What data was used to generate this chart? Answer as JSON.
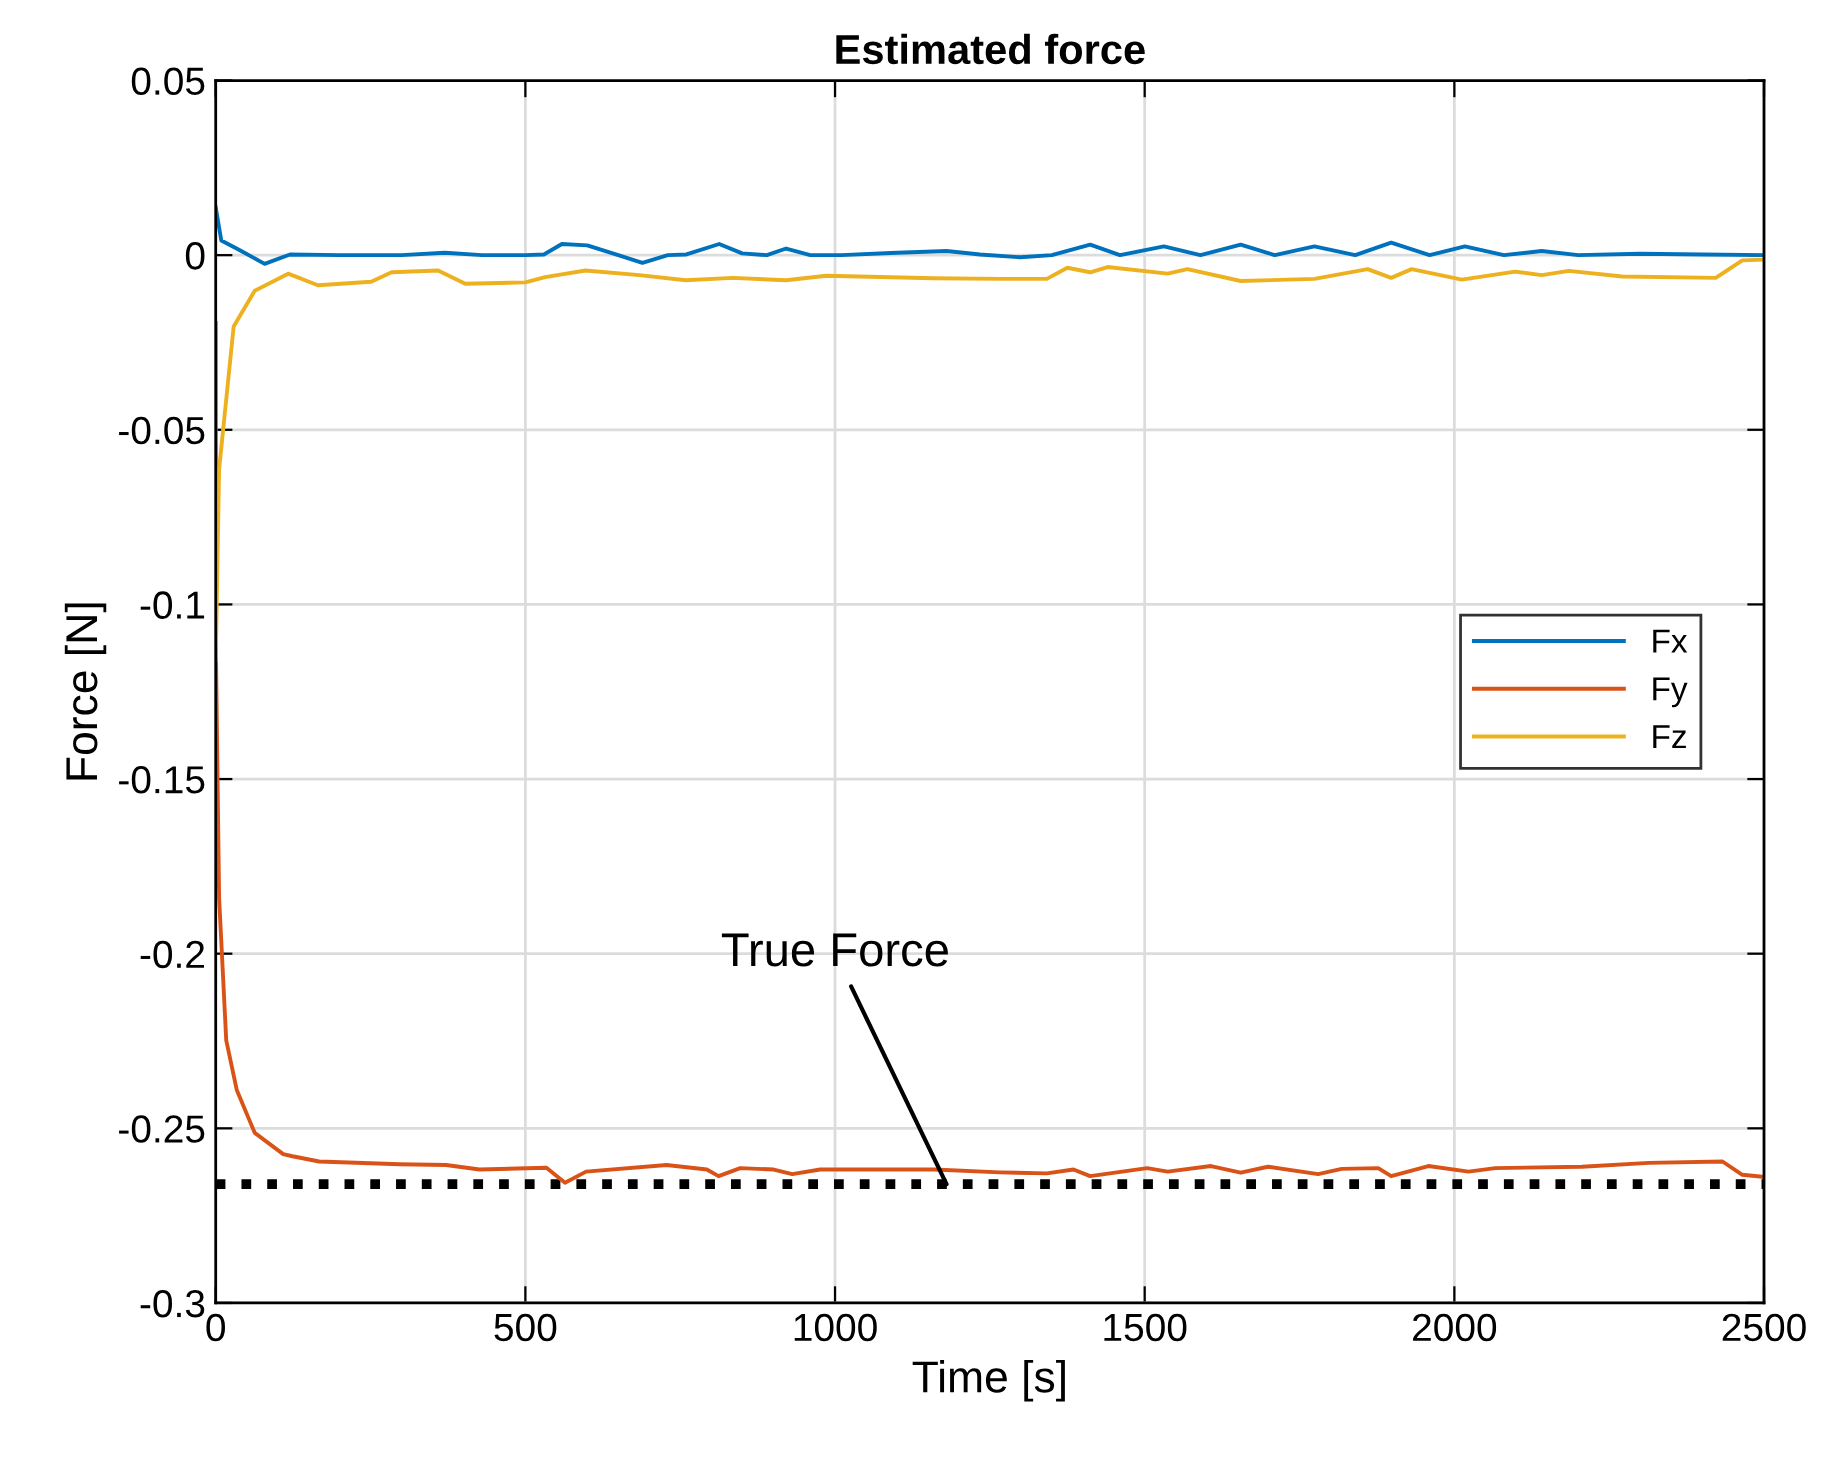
{
  "chart_data": {
    "type": "line",
    "title": "Estimated force",
    "xlabel": "Time [s]",
    "ylabel": "Force [N]",
    "xlim": [
      0,
      2500
    ],
    "xticks": [
      0,
      500,
      1000,
      1500,
      2000,
      2500
    ],
    "ylim": [
      -0.3,
      0.05
    ],
    "yticks": [
      -0.3,
      -0.25,
      -0.2,
      -0.15,
      -0.1,
      -0.05,
      0,
      0.05
    ],
    "grid": true,
    "legend": "right",
    "series": [
      {
        "name": "Fx",
        "color": "#0072bd",
        "x": [
          0,
          9,
          36,
          79,
          120,
          200,
          300,
          370,
          430,
          500,
          530,
          559,
          600,
          650,
          689,
          730,
          760,
          813,
          850,
          890,
          921,
          960,
          1010,
          1090,
          1180,
          1234,
          1299,
          1350,
          1412,
          1460,
          1531,
          1590,
          1655,
          1710,
          1774,
          1840,
          1898,
          1960,
          2017,
          2080,
          2141,
          2200,
          2300,
          2400,
          2500
        ],
        "values": [
          0.0137,
          0.0042,
          0.0017,
          -0.0025,
          0.0002,
          0,
          0,
          0.0007,
          0,
          0,
          0.0002,
          0.0032,
          0.0028,
          0,
          -0.0022,
          0,
          0.0002,
          0.0032,
          0.0005,
          0,
          0.0019,
          0,
          0,
          0.0006,
          0.0012,
          0.0002,
          -0.0006,
          0,
          0.003,
          0,
          0.0025,
          0,
          0.003,
          0,
          0.0025,
          0,
          0.0036,
          0,
          0.0025,
          0,
          0.0012,
          0,
          0.0004,
          0.0002,
          0
        ]
      },
      {
        "name": "Fy",
        "color": "#d95319",
        "x": [
          0,
          0.5,
          5.5,
          17,
          34,
          63,
          109,
          124,
          167,
          297,
          372,
          426,
          534,
          564,
          598,
          728,
          793,
          812,
          847,
          901,
          931,
          976,
          1160,
          1266,
          1342,
          1385,
          1412,
          1504,
          1537,
          1607,
          1655,
          1699,
          1780,
          1818,
          1877,
          1898,
          1958,
          2023,
          2066,
          2206,
          2314,
          2433,
          2465,
          2500
        ],
        "values": [
          -0.0194,
          -0.116,
          -0.184,
          -0.2248,
          -0.239,
          -0.2513,
          -0.2574,
          -0.258,
          -0.2595,
          -0.2603,
          -0.2605,
          -0.2618,
          -0.2613,
          -0.2656,
          -0.2624,
          -0.2605,
          -0.2618,
          -0.2637,
          -0.2614,
          -0.2618,
          -0.2631,
          -0.2618,
          -0.2618,
          -0.2626,
          -0.2629,
          -0.2618,
          -0.2637,
          -0.2614,
          -0.2624,
          -0.2608,
          -0.2627,
          -0.261,
          -0.2631,
          -0.2616,
          -0.2614,
          -0.2637,
          -0.2608,
          -0.2624,
          -0.2614,
          -0.261,
          -0.2599,
          -0.2595,
          -0.2633,
          -0.2639
        ]
      },
      {
        "name": "Fz",
        "color": "#edb120",
        "x": [
          0,
          5.5,
          29,
          63,
          117,
          165,
          251,
          284,
          359,
          403,
          500,
          532,
          597,
          684,
          759,
          835,
          921,
          986,
          1159,
          1266,
          1342,
          1375,
          1412,
          1440,
          1537,
          1569,
          1655,
          1774,
          1860,
          1898,
          1931,
          2012,
          2098,
          2141,
          2185,
          2271,
          2422,
          2465,
          2500
        ],
        "values": [
          -0.116,
          -0.0613,
          -0.0204,
          -0.0102,
          -0.0053,
          -0.0086,
          -0.0076,
          -0.0049,
          -0.0044,
          -0.0082,
          -0.0078,
          -0.0063,
          -0.0044,
          -0.0057,
          -0.0072,
          -0.0065,
          -0.0072,
          -0.0059,
          -0.0066,
          -0.0068,
          -0.0068,
          -0.0036,
          -0.0049,
          -0.0034,
          -0.0053,
          -0.004,
          -0.0074,
          -0.0068,
          -0.004,
          -0.0065,
          -0.004,
          -0.007,
          -0.0047,
          -0.0057,
          -0.0045,
          -0.0061,
          -0.0065,
          -0.0015,
          -0.0013
        ]
      }
    ],
    "ref_lines": [
      {
        "axis": "y",
        "value": -0.266,
        "color": "#000000",
        "line_style": "dotted"
      }
    ],
    "annotations": [
      {
        "text": "True Force",
        "x": 1180,
        "y": -0.266
      }
    ]
  }
}
